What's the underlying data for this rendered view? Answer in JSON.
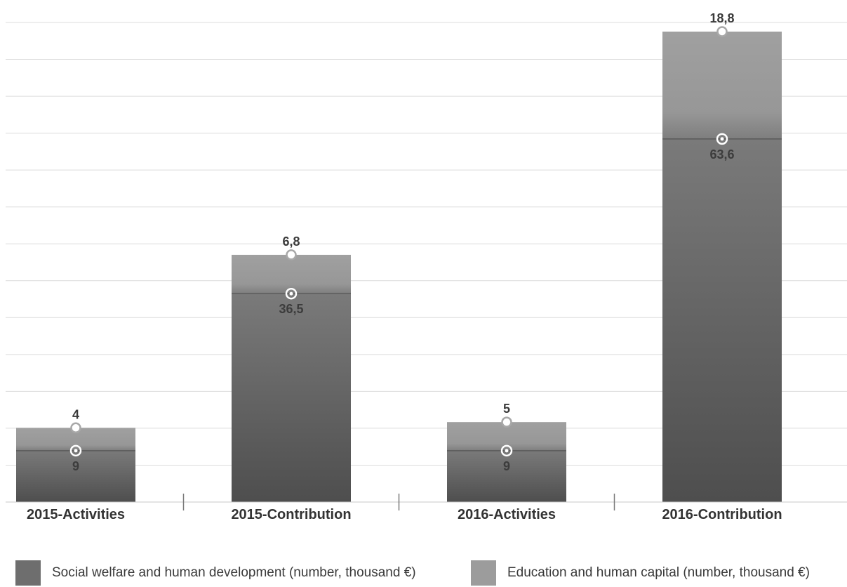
{
  "chart_data": {
    "type": "bar",
    "stacked": true,
    "categories": [
      "2015-Activities",
      "2015-Contribution",
      "2016-Activities",
      "2016-Contribution"
    ],
    "series": [
      {
        "name": "Social welfare and human development (number, thousand €)",
        "values": [
          9,
          36.5,
          9,
          63.6
        ],
        "labels": [
          "9",
          "36,5",
          "9",
          "63,6"
        ],
        "color": "#6e6e6e"
      },
      {
        "name": "Education and human capital (number, thousand €)",
        "values": [
          4,
          6.8,
          5,
          18.8
        ],
        "labels": [
          "4",
          "6,8",
          "5",
          "18,8"
        ],
        "color": "#9c9c9c"
      }
    ],
    "ylim": [
      0,
      84
    ],
    "grid": true,
    "legend_position": "bottom"
  }
}
